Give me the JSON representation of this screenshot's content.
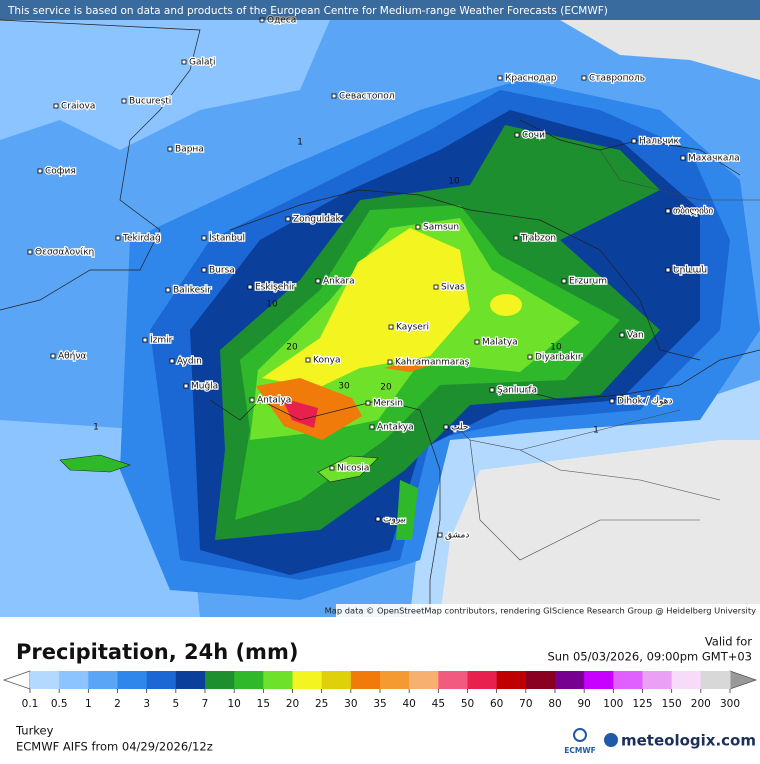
{
  "header": {
    "notice": "This service is based on data and products of the European Centre for Medium-range Weather Forecasts (ECMWF)"
  },
  "map": {
    "places": [
      "Одеса",
      "Galați",
      "Craiova",
      "București",
      "Севастопол",
      "Краснодар",
      "Ставрополь",
      "Сочи",
      "Нальчик",
      "Махачкала",
      "Варна",
      "София",
      "Zonguldak",
      "Samsun",
      "Trabzon",
      "თბილისი",
      "Tekirdağ",
      "İstanbul",
      "Θεσσαλονίκη",
      "Bursa",
      "Balıkesir",
      "Eskişehir",
      "Ankara",
      "Sivas",
      "Erzurum",
      "Երևան",
      "İzmir",
      "Kayseri",
      "Malatya",
      "Van",
      "Αθήνα",
      "Aydın",
      "Konya",
      "Kahramanmaraş",
      "Diyarbakır",
      "Muğla",
      "Antalya",
      "Mersin",
      "Şanlıurfa",
      "Dihok / دهوك",
      "Antakya",
      "حلب",
      "Nicosia",
      "بيروت",
      "دمشق"
    ],
    "contour_labels": [
      "1",
      "10",
      "10",
      "20",
      "30",
      "20",
      "10",
      "1",
      "1"
    ],
    "attribution": "Map data © OpenStreetMap contributors, rendering GIScience Research Group @ Heidelberg University"
  },
  "legend": {
    "title": "Precipitation, 24h (mm)",
    "valid_label": "Valid for",
    "valid_time": "Sun 05/03/2026, 09:00pm GMT+03",
    "colors": [
      "#b3d9ff",
      "#8cc4ff",
      "#5aa5f5",
      "#2f86eb",
      "#1b67d4",
      "#0a3f9c",
      "#1d8f2e",
      "#2fb82a",
      "#6ee22a",
      "#f4f420",
      "#e0d00c",
      "#f07a0a",
      "#f59a30",
      "#f8b070",
      "#f25a80",
      "#e8204e",
      "#c00000",
      "#8a0020",
      "#780090",
      "#c800ff",
      "#e060ff",
      "#eaa0f5",
      "#f6dcf8",
      "#d8d8d8"
    ],
    "ticks": [
      0.1,
      0.5,
      1,
      2,
      3,
      5,
      7,
      10,
      15,
      20,
      25,
      30,
      35,
      40,
      45,
      50,
      60,
      70,
      80,
      90,
      100,
      125,
      150,
      200,
      300
    ]
  },
  "footer": {
    "region": "Turkey",
    "model": "ECMWF AIFS from  04/29/2026/12z",
    "ecmwf_logo": "ECMWF",
    "brand": "meteologix.com"
  }
}
